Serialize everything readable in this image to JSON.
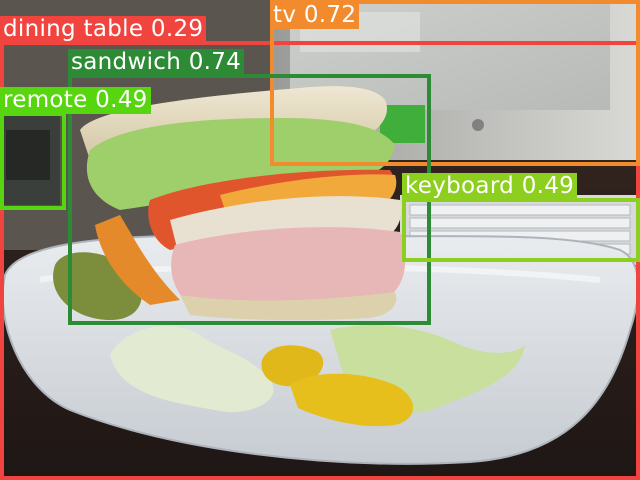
{
  "colors": {
    "dining_table": "#f2443f",
    "tv": "#f28a2e",
    "sandwich": "#2e8b35",
    "remote": "#57d60f",
    "keyboard": "#8ccf1f"
  },
  "detections": [
    {
      "label": "dining table 0.29",
      "class": "dining table",
      "score": "0.29",
      "color": "#f2443f"
    },
    {
      "label": "tv 0.72",
      "class": "tv",
      "score": "0.72",
      "color": "#f28a2e"
    },
    {
      "label": "sandwich 0.74",
      "class": "sandwich",
      "score": "0.74",
      "color": "#2e8b35"
    },
    {
      "label": "remote 0.49",
      "class": "remote",
      "score": "0.49",
      "color": "#57d60f"
    },
    {
      "label": "keyboard 0.49",
      "class": "keyboard",
      "score": "0.49",
      "color": "#8ccf1f"
    }
  ]
}
